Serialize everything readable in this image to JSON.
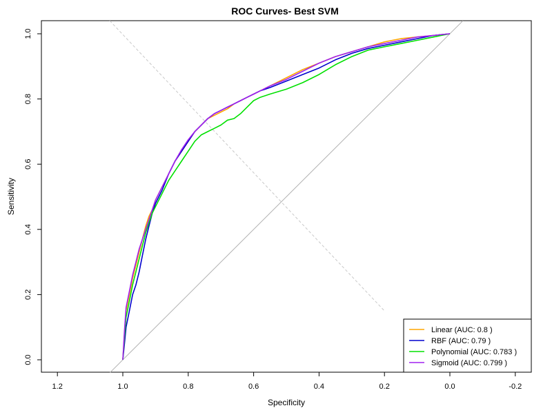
{
  "chart_data": {
    "type": "line",
    "title": "ROC Curves- Best SVM",
    "xlabel": "Specificity",
    "ylabel": "Sensitivity",
    "x_reversed": true,
    "xlim": [
      1.2,
      -0.2
    ],
    "ylim": [
      0.0,
      1.0
    ],
    "xticks": [
      1.2,
      1.0,
      0.8,
      0.6,
      0.4,
      0.2,
      0.0,
      -0.2
    ],
    "xtick_labels": [
      "1.2",
      "1.0",
      "0.8",
      "0.6",
      "0.4",
      "0.2",
      "0.0",
      "-0.2"
    ],
    "yticks": [
      0.0,
      0.2,
      0.4,
      0.6,
      0.8,
      1.0
    ],
    "ytick_labels": [
      "0.0",
      "0.2",
      "0.4",
      "0.6",
      "0.8",
      "1.0"
    ],
    "grid": false,
    "legend_position": "bottom-right",
    "reference_line": {
      "from": [
        1.0,
        0.0
      ],
      "to": [
        0.0,
        1.0
      ],
      "color": "#b0b0b0"
    },
    "dashed_line": {
      "from": [
        1.04,
        1.04
      ],
      "to": [
        0.2,
        0.15
      ],
      "color": "#c8c8c8"
    },
    "series": [
      {
        "name": "Linear (AUC: 0.8 )",
        "color": "#FFA500",
        "specificity": [
          1.0,
          0.995,
          0.99,
          0.98,
          0.97,
          0.96,
          0.95,
          0.94,
          0.93,
          0.92,
          0.91,
          0.9,
          0.88,
          0.86,
          0.84,
          0.82,
          0.8,
          0.78,
          0.76,
          0.74,
          0.72,
          0.7,
          0.68,
          0.66,
          0.64,
          0.62,
          0.6,
          0.58,
          0.55,
          0.5,
          0.45,
          0.4,
          0.35,
          0.3,
          0.25,
          0.2,
          0.15,
          0.1,
          0.05,
          0.0
        ],
        "sensitivity": [
          0.0,
          0.08,
          0.15,
          0.2,
          0.25,
          0.29,
          0.33,
          0.37,
          0.41,
          0.44,
          0.46,
          0.49,
          0.53,
          0.57,
          0.61,
          0.64,
          0.67,
          0.7,
          0.72,
          0.74,
          0.75,
          0.76,
          0.77,
          0.785,
          0.795,
          0.805,
          0.815,
          0.825,
          0.84,
          0.865,
          0.89,
          0.91,
          0.93,
          0.945,
          0.96,
          0.975,
          0.985,
          0.99,
          0.995,
          1.0
        ]
      },
      {
        "name": "RBF (AUC: 0.79 )",
        "color": "#0000CD",
        "specificity": [
          1.0,
          0.995,
          0.99,
          0.98,
          0.97,
          0.96,
          0.95,
          0.94,
          0.93,
          0.92,
          0.91,
          0.9,
          0.88,
          0.86,
          0.84,
          0.82,
          0.8,
          0.78,
          0.76,
          0.74,
          0.72,
          0.7,
          0.68,
          0.66,
          0.64,
          0.62,
          0.6,
          0.58,
          0.55,
          0.5,
          0.45,
          0.4,
          0.35,
          0.3,
          0.25,
          0.2,
          0.15,
          0.1,
          0.05,
          0.0
        ],
        "sensitivity": [
          0.0,
          0.05,
          0.1,
          0.15,
          0.2,
          0.23,
          0.27,
          0.32,
          0.37,
          0.41,
          0.45,
          0.48,
          0.52,
          0.57,
          0.61,
          0.64,
          0.67,
          0.7,
          0.72,
          0.74,
          0.755,
          0.765,
          0.775,
          0.785,
          0.795,
          0.805,
          0.815,
          0.825,
          0.835,
          0.855,
          0.875,
          0.895,
          0.92,
          0.94,
          0.955,
          0.965,
          0.975,
          0.985,
          0.995,
          1.0
        ]
      },
      {
        "name": "Polynomial (AUC: 0.783 )",
        "color": "#00E000",
        "specificity": [
          1.0,
          0.995,
          0.99,
          0.98,
          0.97,
          0.96,
          0.95,
          0.94,
          0.93,
          0.92,
          0.91,
          0.9,
          0.88,
          0.86,
          0.84,
          0.82,
          0.8,
          0.78,
          0.76,
          0.74,
          0.72,
          0.7,
          0.68,
          0.66,
          0.64,
          0.62,
          0.6,
          0.58,
          0.55,
          0.5,
          0.45,
          0.4,
          0.35,
          0.3,
          0.25,
          0.2,
          0.15,
          0.1,
          0.05,
          0.0
        ],
        "sensitivity": [
          0.0,
          0.07,
          0.13,
          0.18,
          0.23,
          0.27,
          0.31,
          0.35,
          0.39,
          0.42,
          0.45,
          0.47,
          0.51,
          0.55,
          0.58,
          0.61,
          0.64,
          0.67,
          0.69,
          0.7,
          0.71,
          0.72,
          0.735,
          0.74,
          0.755,
          0.775,
          0.795,
          0.805,
          0.815,
          0.83,
          0.85,
          0.875,
          0.905,
          0.93,
          0.95,
          0.96,
          0.97,
          0.98,
          0.99,
          1.0
        ]
      },
      {
        "name": "Sigmoid (AUC: 0.799 )",
        "color": "#A020F0",
        "specificity": [
          1.0,
          0.995,
          0.99,
          0.98,
          0.97,
          0.96,
          0.95,
          0.94,
          0.93,
          0.92,
          0.91,
          0.9,
          0.88,
          0.86,
          0.84,
          0.82,
          0.8,
          0.78,
          0.76,
          0.74,
          0.72,
          0.7,
          0.68,
          0.66,
          0.64,
          0.62,
          0.6,
          0.58,
          0.55,
          0.5,
          0.45,
          0.4,
          0.35,
          0.3,
          0.25,
          0.2,
          0.15,
          0.1,
          0.05,
          0.0
        ],
        "sensitivity": [
          0.0,
          0.09,
          0.16,
          0.21,
          0.26,
          0.3,
          0.34,
          0.37,
          0.4,
          0.43,
          0.46,
          0.49,
          0.53,
          0.57,
          0.61,
          0.645,
          0.675,
          0.7,
          0.72,
          0.74,
          0.755,
          0.765,
          0.775,
          0.785,
          0.795,
          0.805,
          0.815,
          0.825,
          0.84,
          0.86,
          0.885,
          0.91,
          0.93,
          0.945,
          0.96,
          0.97,
          0.98,
          0.99,
          0.995,
          1.0
        ]
      }
    ]
  }
}
